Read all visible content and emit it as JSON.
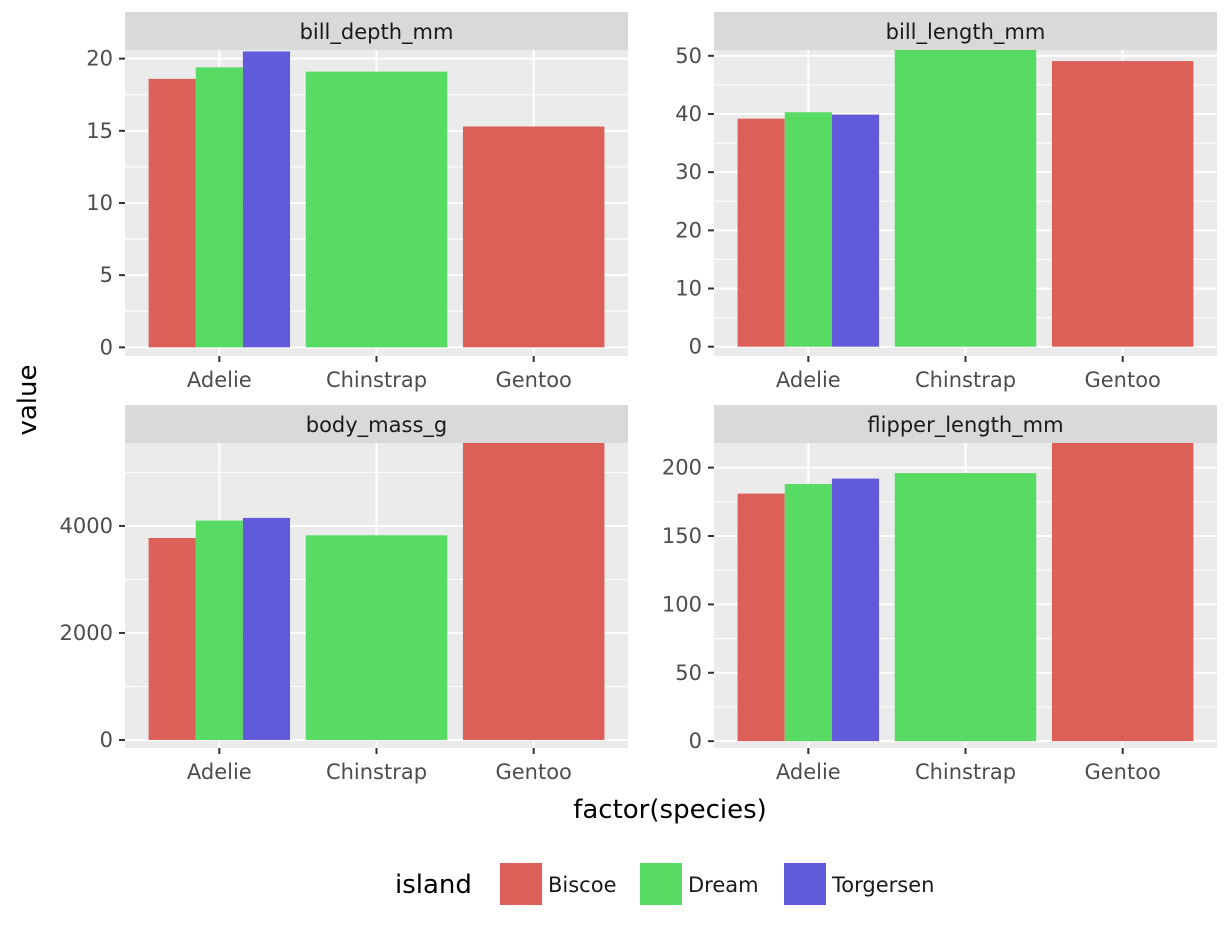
{
  "chart_data": {
    "type": "bar",
    "layout": "facet-wrap 2x2, free y scales",
    "xlabel": "factor(species)",
    "ylabel": "value",
    "legend": {
      "title": "island",
      "placement": "bottom",
      "entries": [
        {
          "name": "Biscoe",
          "color": "#dc6058"
        },
        {
          "name": "Dream",
          "color": "#57db62"
        },
        {
          "name": "Torgersen",
          "color": "#615ada"
        }
      ]
    },
    "colors": {
      "panel_background": "#ebebeb",
      "strip_background": "#d9d9d9",
      "gridline": "#ffffff",
      "axis_text": "#4d4d4d",
      "title_text": "#000000",
      "strip_text": "#1a1a1a"
    },
    "categories": [
      "Adelie",
      "Chinstrap",
      "Gentoo"
    ],
    "facets": [
      {
        "title": "bill_depth_mm",
        "ylim": [
          -0.6,
          20.6
        ],
        "yticks": [
          0,
          5,
          10,
          15,
          20
        ],
        "ytick_labels": [
          "0",
          "5",
          "10",
          "15",
          "20"
        ],
        "bars": [
          {
            "category": "Adelie",
            "island": "Biscoe",
            "value": 18.6
          },
          {
            "category": "Adelie",
            "island": "Dream",
            "value": 19.4
          },
          {
            "category": "Adelie",
            "island": "Torgersen",
            "value": 20.5
          },
          {
            "category": "Chinstrap",
            "island": "Dream",
            "value": 19.1
          },
          {
            "category": "Gentoo",
            "island": "Biscoe",
            "value": 15.3
          }
        ]
      },
      {
        "title": "bill_length_mm",
        "ylim": [
          -1.6,
          51.0
        ],
        "yticks": [
          0,
          10,
          20,
          30,
          40,
          50
        ],
        "ytick_labels": [
          "0",
          "10",
          "20",
          "30",
          "40",
          "50"
        ],
        "bars": [
          {
            "category": "Adelie",
            "island": "Biscoe",
            "value": 39.2
          },
          {
            "category": "Adelie",
            "island": "Dream",
            "value": 40.3
          },
          {
            "category": "Adelie",
            "island": "Torgersen",
            "value": 39.9
          },
          {
            "category": "Chinstrap",
            "island": "Dream",
            "value": 51.0
          },
          {
            "category": "Gentoo",
            "island": "Biscoe",
            "value": 49.1
          }
        ]
      },
      {
        "title": "body_mass_g",
        "ylim": [
          -150,
          5550
        ],
        "yticks": [
          0,
          2000,
          4000
        ],
        "ytick_labels": [
          "0",
          "2000",
          "4000"
        ],
        "bars": [
          {
            "category": "Adelie",
            "island": "Biscoe",
            "value": 3775
          },
          {
            "category": "Adelie",
            "island": "Dream",
            "value": 4100
          },
          {
            "category": "Adelie",
            "island": "Torgersen",
            "value": 4150
          },
          {
            "category": "Chinstrap",
            "island": "Dream",
            "value": 3825
          },
          {
            "category": "Gentoo",
            "island": "Biscoe",
            "value": 5550
          }
        ]
      },
      {
        "title": "flipper_length_mm",
        "ylim": [
          -5,
          218
        ],
        "yticks": [
          0,
          50,
          100,
          150,
          200
        ],
        "ytick_labels": [
          "0",
          "50",
          "100",
          "150",
          "200"
        ],
        "bars": [
          {
            "category": "Adelie",
            "island": "Biscoe",
            "value": 181
          },
          {
            "category": "Adelie",
            "island": "Dream",
            "value": 188
          },
          {
            "category": "Adelie",
            "island": "Torgersen",
            "value": 192
          },
          {
            "category": "Chinstrap",
            "island": "Dream",
            "value": 196
          },
          {
            "category": "Gentoo",
            "island": "Biscoe",
            "value": 218
          }
        ]
      }
    ]
  }
}
